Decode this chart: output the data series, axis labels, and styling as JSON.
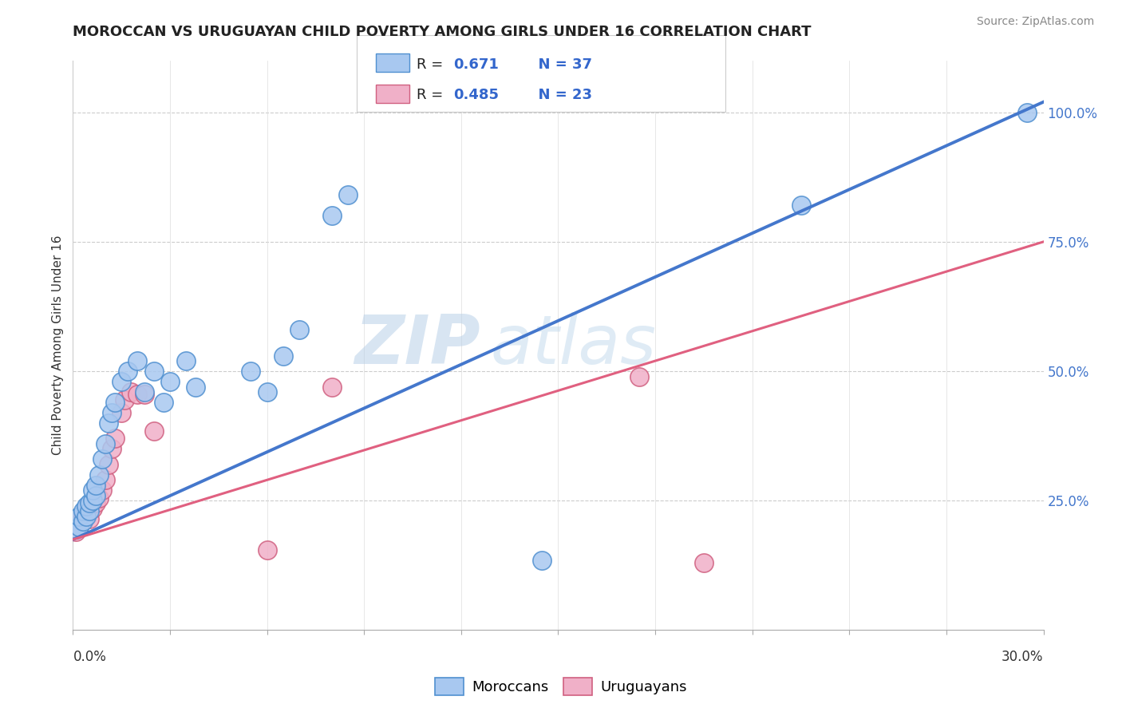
{
  "title": "MOROCCAN VS URUGUAYAN CHILD POVERTY AMONG GIRLS UNDER 16 CORRELATION CHART",
  "source": "Source: ZipAtlas.com",
  "ylabel": "Child Poverty Among Girls Under 16",
  "right_yticks": [
    "100.0%",
    "75.0%",
    "50.0%",
    "25.0%"
  ],
  "right_ytick_vals": [
    1.0,
    0.75,
    0.5,
    0.25
  ],
  "legend_moroccan_r": "R =  0.671",
  "legend_moroccan_n": "N = 37",
  "legend_uruguayan_r": "R =  0.485",
  "legend_uruguayan_n": "N = 23",
  "moroccan_face": "#A8C8F0",
  "moroccan_edge": "#5090D0",
  "uruguayan_face": "#F0B0C8",
  "uruguayan_edge": "#D06080",
  "moroccan_line_color": "#4477CC",
  "uruguayan_line_color": "#E06080",
  "watermark_color": "#C8DCF0",
  "blue_scatter_x": [
    0.001,
    0.002,
    0.002,
    0.003,
    0.003,
    0.004,
    0.004,
    0.005,
    0.005,
    0.006,
    0.006,
    0.007,
    0.007,
    0.008,
    0.009,
    0.01,
    0.011,
    0.012,
    0.013,
    0.015,
    0.017,
    0.02,
    0.022,
    0.025,
    0.028,
    0.03,
    0.035,
    0.038,
    0.055,
    0.06,
    0.065,
    0.07,
    0.08,
    0.085,
    0.145,
    0.225,
    0.295
  ],
  "blue_scatter_y": [
    0.195,
    0.2,
    0.22,
    0.21,
    0.23,
    0.22,
    0.24,
    0.23,
    0.245,
    0.25,
    0.27,
    0.26,
    0.28,
    0.3,
    0.33,
    0.36,
    0.4,
    0.42,
    0.44,
    0.48,
    0.5,
    0.52,
    0.46,
    0.5,
    0.44,
    0.48,
    0.52,
    0.47,
    0.5,
    0.46,
    0.53,
    0.58,
    0.8,
    0.84,
    0.135,
    0.82,
    1.0
  ],
  "pink_scatter_x": [
    0.001,
    0.002,
    0.003,
    0.004,
    0.005,
    0.006,
    0.007,
    0.008,
    0.009,
    0.01,
    0.011,
    0.012,
    0.013,
    0.015,
    0.016,
    0.018,
    0.02,
    0.022,
    0.025,
    0.06,
    0.08,
    0.175,
    0.195
  ],
  "pink_scatter_y": [
    0.19,
    0.2,
    0.22,
    0.235,
    0.215,
    0.235,
    0.245,
    0.255,
    0.27,
    0.29,
    0.32,
    0.35,
    0.37,
    0.42,
    0.445,
    0.46,
    0.455,
    0.455,
    0.385,
    0.155,
    0.47,
    0.49,
    0.13
  ],
  "blue_line_x0": 0.0,
  "blue_line_y0": 0.175,
  "blue_line_x1": 0.3,
  "blue_line_y1": 1.02,
  "pink_line_x0": 0.0,
  "pink_line_y0": 0.175,
  "pink_line_x1": 0.3,
  "pink_line_y1": 0.75,
  "xmin": 0.0,
  "xmax": 0.3,
  "ymin": 0.0,
  "ymax": 1.1
}
